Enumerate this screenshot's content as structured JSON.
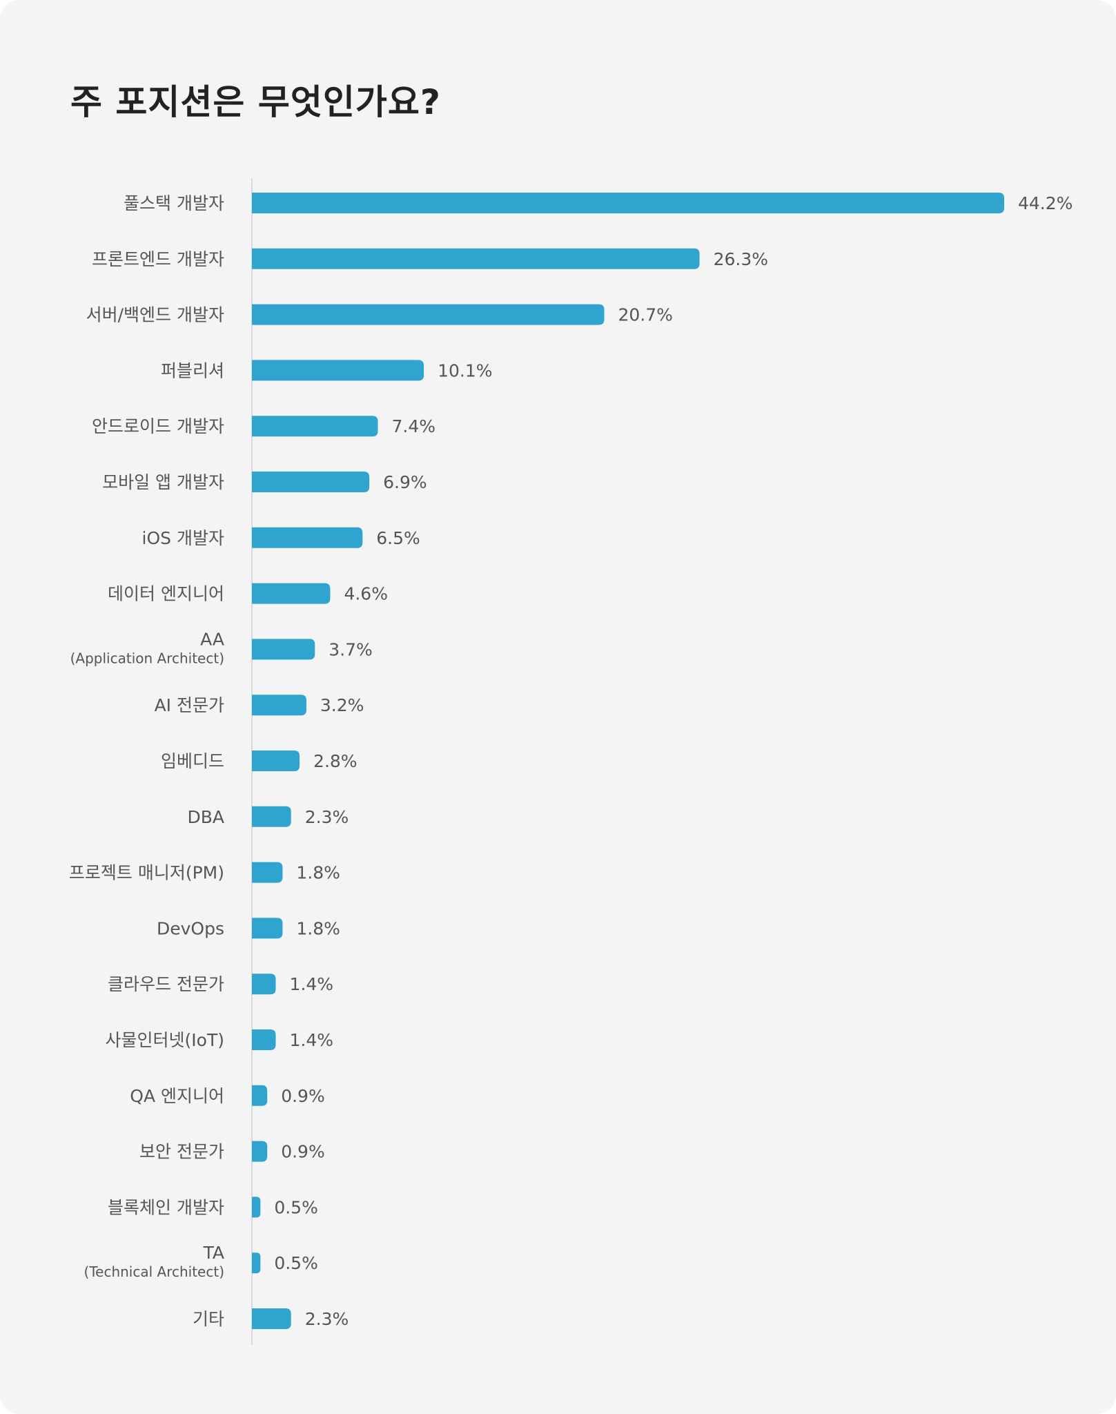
{
  "chart_data": {
    "type": "bar",
    "orientation": "horizontal",
    "title": "주 포지션은 무엇인가요?",
    "bar_color": "#2ea4cf",
    "value_suffix": "%",
    "xlim": [
      0,
      44.2
    ],
    "grid": false,
    "categories": [
      {
        "label": "풀스택 개발자"
      },
      {
        "label": "프론트엔드 개발자"
      },
      {
        "label": "서버/백엔드 개발자"
      },
      {
        "label": "퍼블리셔"
      },
      {
        "label": "안드로이드 개발자"
      },
      {
        "label": "모바일 앱 개발자"
      },
      {
        "label": "iOS 개발자"
      },
      {
        "label": "데이터 엔지니어"
      },
      {
        "label": "AA",
        "sub": "(Application Architect)"
      },
      {
        "label": "AI 전문가"
      },
      {
        "label": "임베디드"
      },
      {
        "label": "DBA"
      },
      {
        "label": "프로젝트 매니저(PM)"
      },
      {
        "label": "DevOps"
      },
      {
        "label": "클라우드 전문가"
      },
      {
        "label": "사물인터넷(IoT)"
      },
      {
        "label": "QA 엔지니어"
      },
      {
        "label": "보안 전문가"
      },
      {
        "label": "블록체인 개발자"
      },
      {
        "label": "TA",
        "sub": "(Technical Architect)"
      },
      {
        "label": "기타"
      }
    ],
    "values": [
      44.2,
      26.3,
      20.7,
      10.1,
      7.4,
      6.9,
      6.5,
      4.6,
      3.7,
      3.2,
      2.8,
      2.3,
      1.8,
      1.8,
      1.4,
      1.4,
      0.9,
      0.9,
      0.5,
      0.5,
      2.3
    ],
    "value_labels": [
      "44.2%",
      "26.3%",
      "20.7%",
      "10.1%",
      "7.4%",
      "6.9%",
      "6.5%",
      "4.6%",
      "3.7%",
      "3.2%",
      "2.8%",
      "2.3%",
      "1.8%",
      "1.8%",
      "1.4%",
      "1.4%",
      "0.9%",
      "0.9%",
      "0.5%",
      "0.5%",
      "2.3%"
    ]
  }
}
